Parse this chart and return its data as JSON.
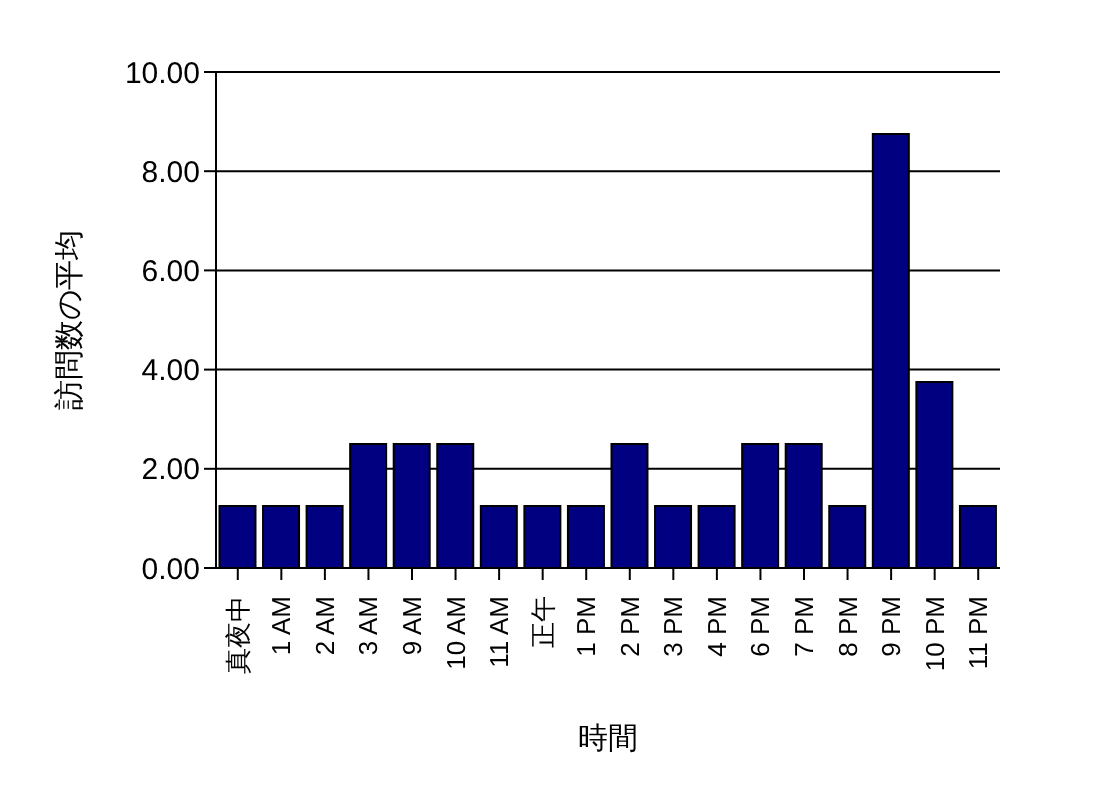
{
  "chart_data": {
    "type": "bar",
    "xlabel": "時間",
    "ylabel": "訪問数の平均",
    "categories": [
      "真夜中",
      "1 AM",
      "2 AM",
      "3 AM",
      "9 AM",
      "10 AM",
      "11 AM",
      "正午",
      "1 PM",
      "2 PM",
      "3 PM",
      "4 PM",
      "6 PM",
      "7 PM",
      "8 PM",
      "9 PM",
      "10 PM",
      "11 PM"
    ],
    "values": [
      1.25,
      1.25,
      1.25,
      2.5,
      2.5,
      2.5,
      1.25,
      1.25,
      1.25,
      2.5,
      1.25,
      1.25,
      2.5,
      2.5,
      1.25,
      8.75,
      3.75,
      1.25
    ],
    "color": "#000080",
    "ylim": [
      0,
      10
    ],
    "yticks": [
      {
        "value": 0,
        "label": "0.00"
      },
      {
        "value": 2,
        "label": "2.00"
      },
      {
        "value": 4,
        "label": "4.00"
      },
      {
        "value": 6,
        "label": "6.00"
      },
      {
        "value": 8,
        "label": "8.00"
      },
      {
        "value": 10,
        "label": "10.00"
      }
    ],
    "grid": "y",
    "legend": false
  }
}
